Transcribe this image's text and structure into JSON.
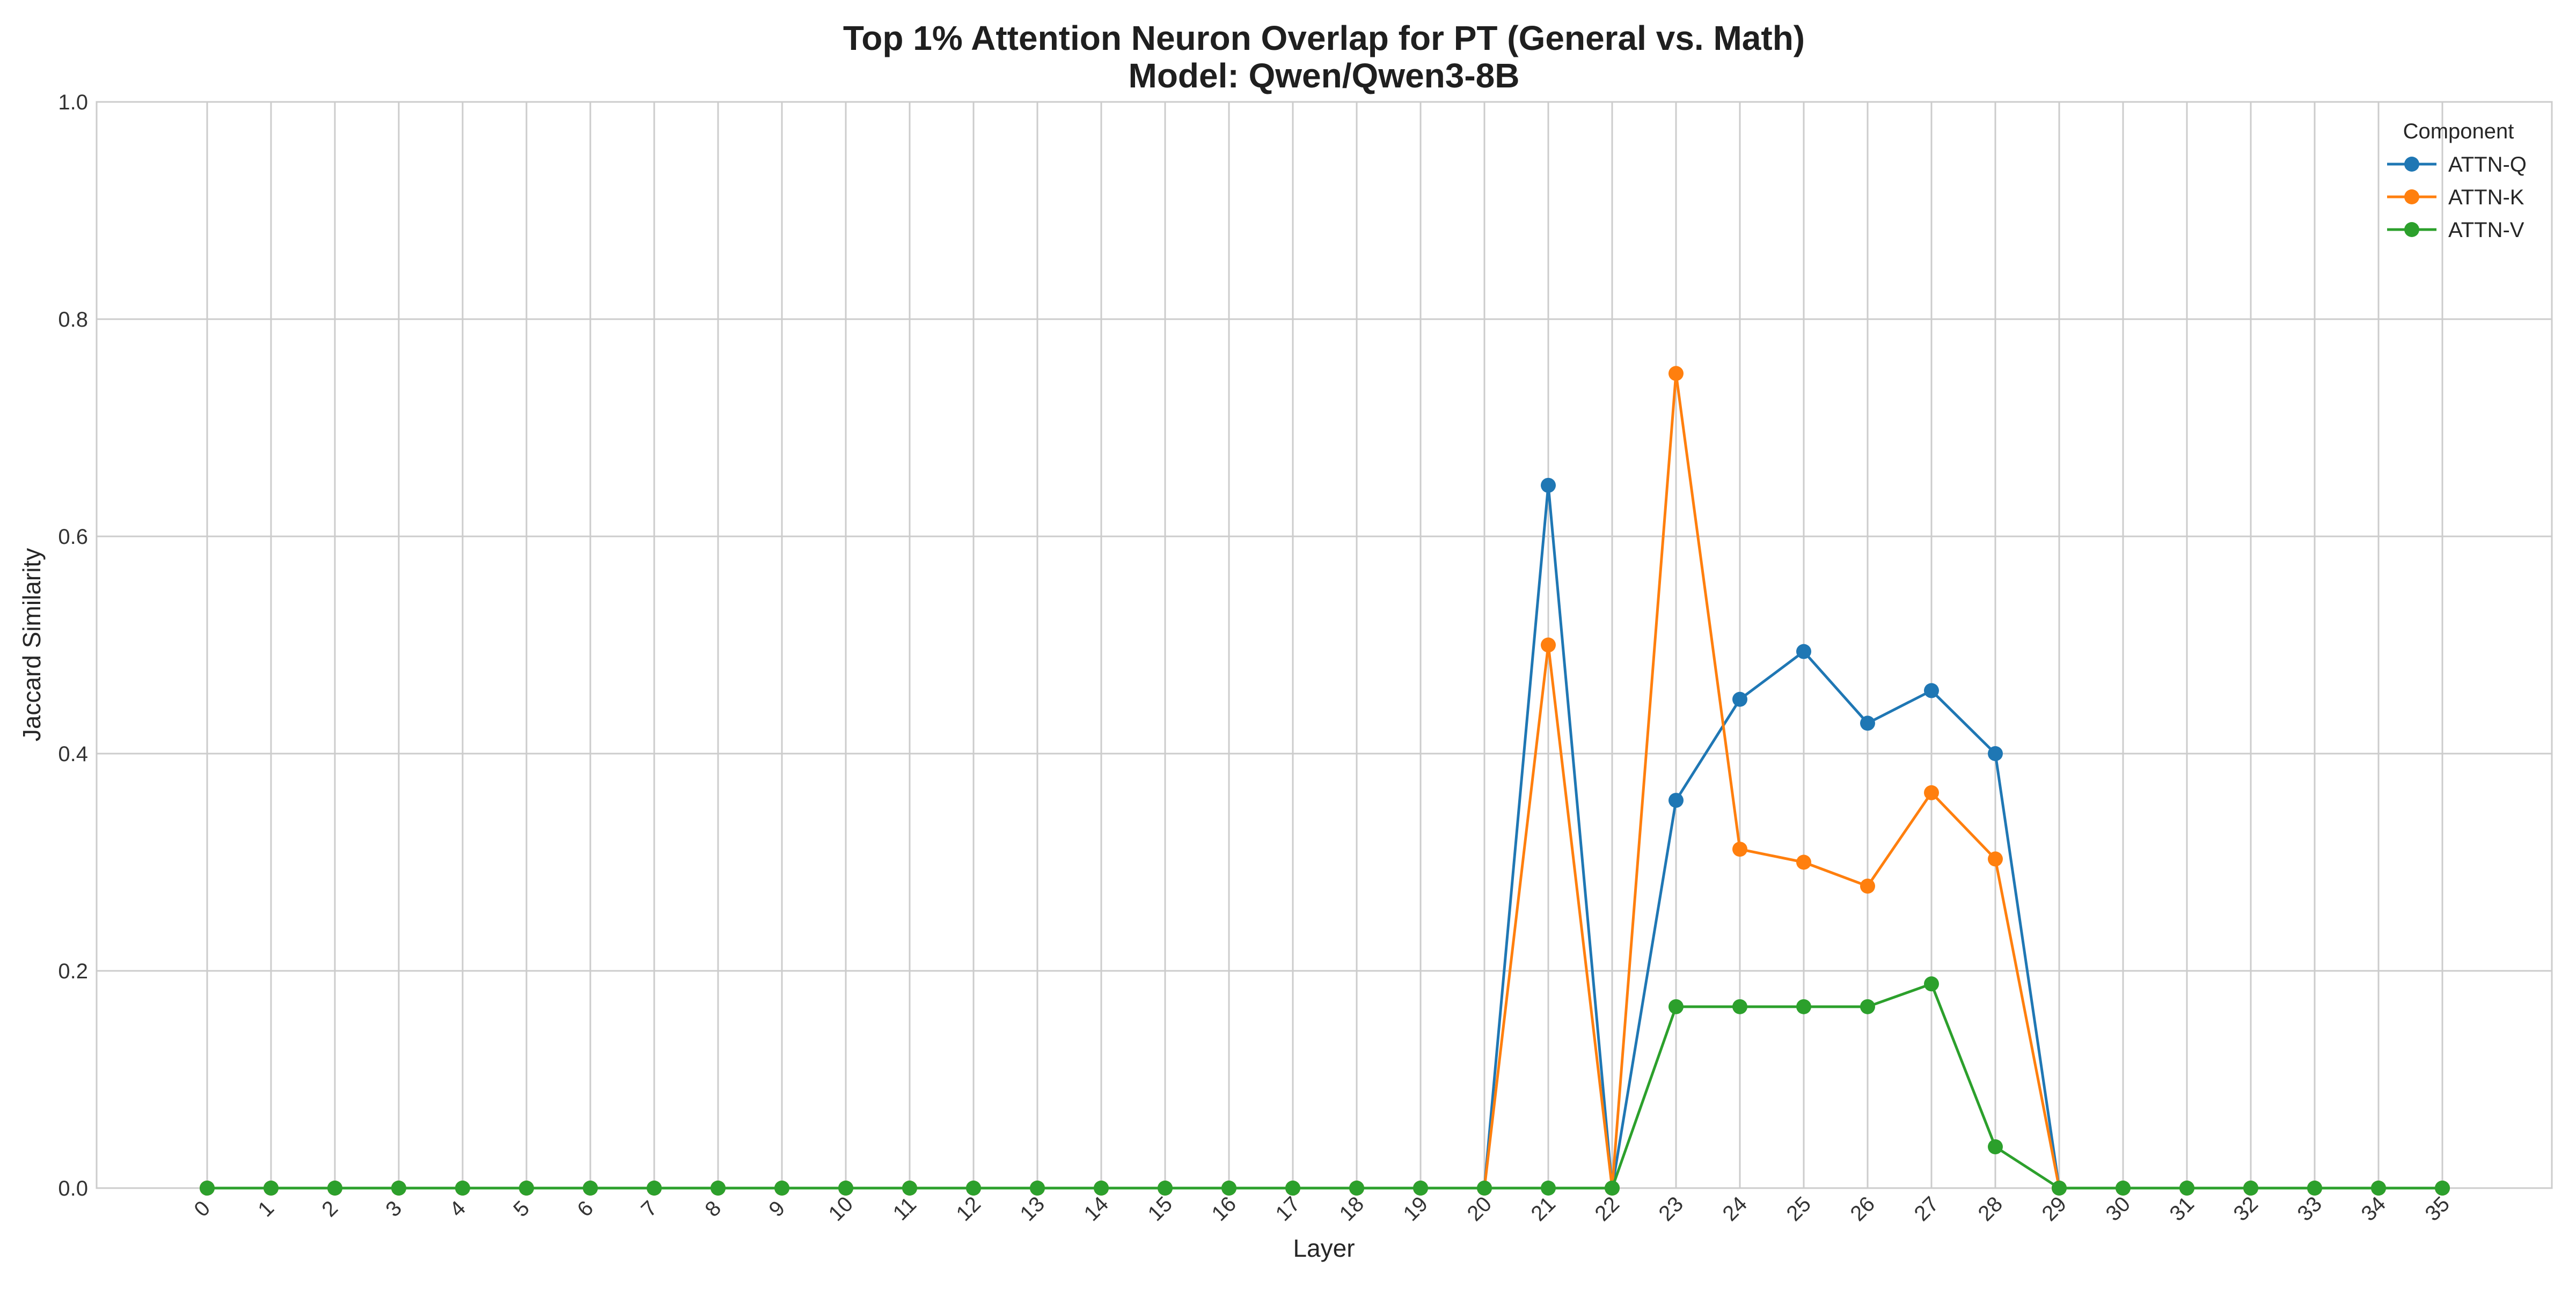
{
  "chart_data": {
    "type": "line",
    "title": "Top 1% Attention Neuron Overlap for PT (General vs. Math)",
    "subtitle": "Model: Qwen/Qwen3-8B",
    "xlabel": "Layer",
    "ylabel": "Jaccard Similarity",
    "x": [
      0,
      1,
      2,
      3,
      4,
      5,
      6,
      7,
      8,
      9,
      10,
      11,
      12,
      13,
      14,
      15,
      16,
      17,
      18,
      19,
      20,
      21,
      22,
      23,
      24,
      25,
      26,
      27,
      28,
      29,
      30,
      31,
      32,
      33,
      34,
      35
    ],
    "x_tick_labels": [
      "0",
      "1",
      "2",
      "3",
      "4",
      "5",
      "6",
      "7",
      "8",
      "9",
      "10",
      "11",
      "12",
      "13",
      "14",
      "15",
      "16",
      "17",
      "18",
      "19",
      "20",
      "21",
      "22",
      "23",
      "24",
      "25",
      "26",
      "27",
      "28",
      "29",
      "30",
      "31",
      "32",
      "33",
      "34",
      "35"
    ],
    "ylim": [
      0,
      1.0
    ],
    "y_ticks": [
      0.0,
      0.2,
      0.4,
      0.6,
      0.8,
      1.0
    ],
    "y_tick_labels": [
      "0.0",
      "0.2",
      "0.4",
      "0.6",
      "0.8",
      "1.0"
    ],
    "grid": true,
    "legend": {
      "title": "Component",
      "placement": "top-right"
    },
    "series": [
      {
        "name": "ATTN-Q",
        "color": "#1f77b4",
        "marker": "circle",
        "values": [
          0,
          0,
          0,
          0,
          0,
          0,
          0,
          0,
          0,
          0,
          0,
          0,
          0,
          0,
          0,
          0,
          0,
          0,
          0,
          0,
          0,
          0.647,
          0,
          0.357,
          0.45,
          0.494,
          0.428,
          0.458,
          0.4,
          0,
          0,
          0,
          0,
          0,
          0,
          0
        ]
      },
      {
        "name": "ATTN-K",
        "color": "#ff7f0e",
        "marker": "circle",
        "values": [
          0,
          0,
          0,
          0,
          0,
          0,
          0,
          0,
          0,
          0,
          0,
          0,
          0,
          0,
          0,
          0,
          0,
          0,
          0,
          0,
          0,
          0.5,
          0,
          0.75,
          0.312,
          0.3,
          0.278,
          0.364,
          0.303,
          0,
          0,
          0,
          0,
          0,
          0,
          0
        ]
      },
      {
        "name": "ATTN-V",
        "color": "#2ca02c",
        "marker": "circle",
        "values": [
          0,
          0,
          0,
          0,
          0,
          0,
          0,
          0,
          0,
          0,
          0,
          0,
          0,
          0,
          0,
          0,
          0,
          0,
          0,
          0,
          0,
          0,
          0,
          0.167,
          0.167,
          0.167,
          0.167,
          0.188,
          0.038,
          0,
          0,
          0,
          0,
          0,
          0,
          0
        ]
      }
    ]
  }
}
